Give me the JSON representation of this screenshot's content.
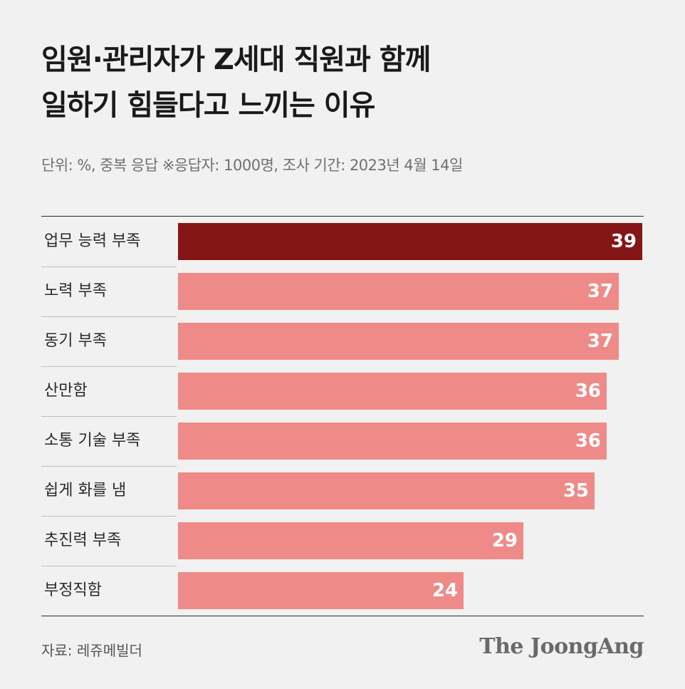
{
  "title_lines": [
    "임원·관리자가 Z세대 직원과 함께",
    "일하기 힘들다고 느끼는 이유"
  ],
  "subtitle": "단위: %, 중복 응답  ※응답자: 1000명, 조사 기간: 2023년 4월 14일",
  "source": "자료: 레쥬메빌더",
  "logo": "The JoongAng",
  "colors": {
    "highlight": "#841716",
    "bar": "#ee8a88",
    "background": "#f1f1f1"
  },
  "chart_data": {
    "type": "bar",
    "orientation": "horizontal",
    "categories": [
      "업무 능력 부족",
      "노력 부족",
      "동기 부족",
      "산만함",
      "소통 기술 부족",
      "쉽게 화를 냄",
      "추진력 부족",
      "부정직함"
    ],
    "values": [
      39,
      37,
      37,
      36,
      36,
      35,
      29,
      24
    ],
    "data_labels": [
      "39",
      "37",
      "37",
      "36",
      "36",
      "35",
      "29",
      "24"
    ],
    "highlight_index": 0,
    "title": "임원·관리자가 Z세대 직원과 함께 일하기 힘들다고 느끼는 이유",
    "unit": "%",
    "xlim": [
      0,
      39
    ],
    "grid": false,
    "legend": "none"
  }
}
